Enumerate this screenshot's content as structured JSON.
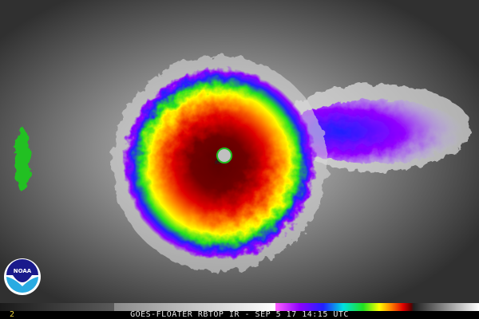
{
  "caption": "GOES-FLOATER RBTOP IR - SEP 5 17 14:15 UTC",
  "frame_number": "2",
  "logo_text": "NOAA",
  "colors": {
    "eye": "#c0c0c0",
    "core": "#3a0000",
    "red": "#e00000",
    "orange": "#ff8000",
    "yellow": "#ffff00",
    "green": "#20e020",
    "blue": "#2020ff",
    "purple": "#9000ff",
    "noaa_dark_blue": "#1a1a8c",
    "noaa_light_blue": "#29abe2"
  }
}
